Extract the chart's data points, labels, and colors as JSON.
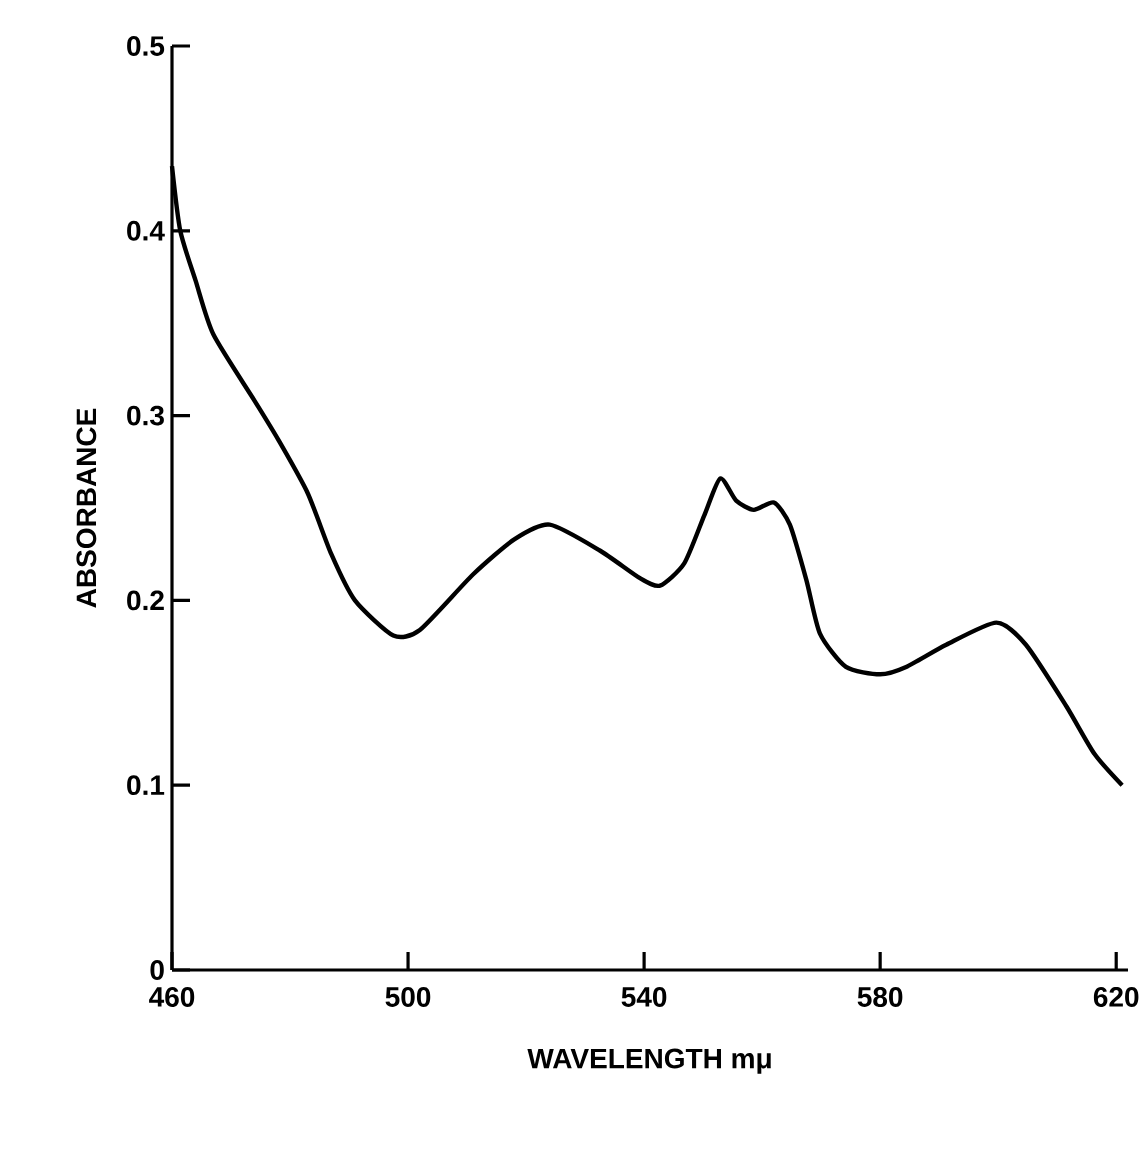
{
  "chart_data": {
    "type": "line",
    "xlabel": "WAVELENGTH   mμ",
    "ylabel": "ABSORBANCE",
    "color": "#000000",
    "x": [
      460,
      461.4,
      464,
      467,
      474,
      478,
      483,
      487,
      491,
      497.5,
      502,
      511,
      518,
      524,
      532.5,
      539.3,
      542.7,
      546.8,
      550.2,
      552.9,
      555.6,
      558.6,
      562,
      564.7,
      567.5,
      569.8,
      574.2,
      580,
      584.4,
      591.2,
      599.7,
      604.7,
      611.5,
      616.3,
      621
    ],
    "values": [
      0.435,
      0.4,
      0.373,
      0.344,
      0.308,
      0.287,
      0.258,
      0.225,
      0.2,
      0.181,
      0.184,
      0.214,
      0.233,
      0.241,
      0.227,
      0.212,
      0.208,
      0.22,
      0.246,
      0.266,
      0.254,
      0.249,
      0.253,
      0.241,
      0.211,
      0.182,
      0.164,
      0.16,
      0.164,
      0.176,
      0.188,
      0.176,
      0.143,
      0.117,
      0.1
    ],
    "xlim": [
      460,
      622
    ],
    "ylim": [
      0,
      0.5
    ],
    "xticks": [
      460,
      500,
      540,
      580,
      620
    ],
    "yticks": [
      0,
      0.1,
      0.2,
      0.3,
      0.4,
      0.5
    ]
  }
}
